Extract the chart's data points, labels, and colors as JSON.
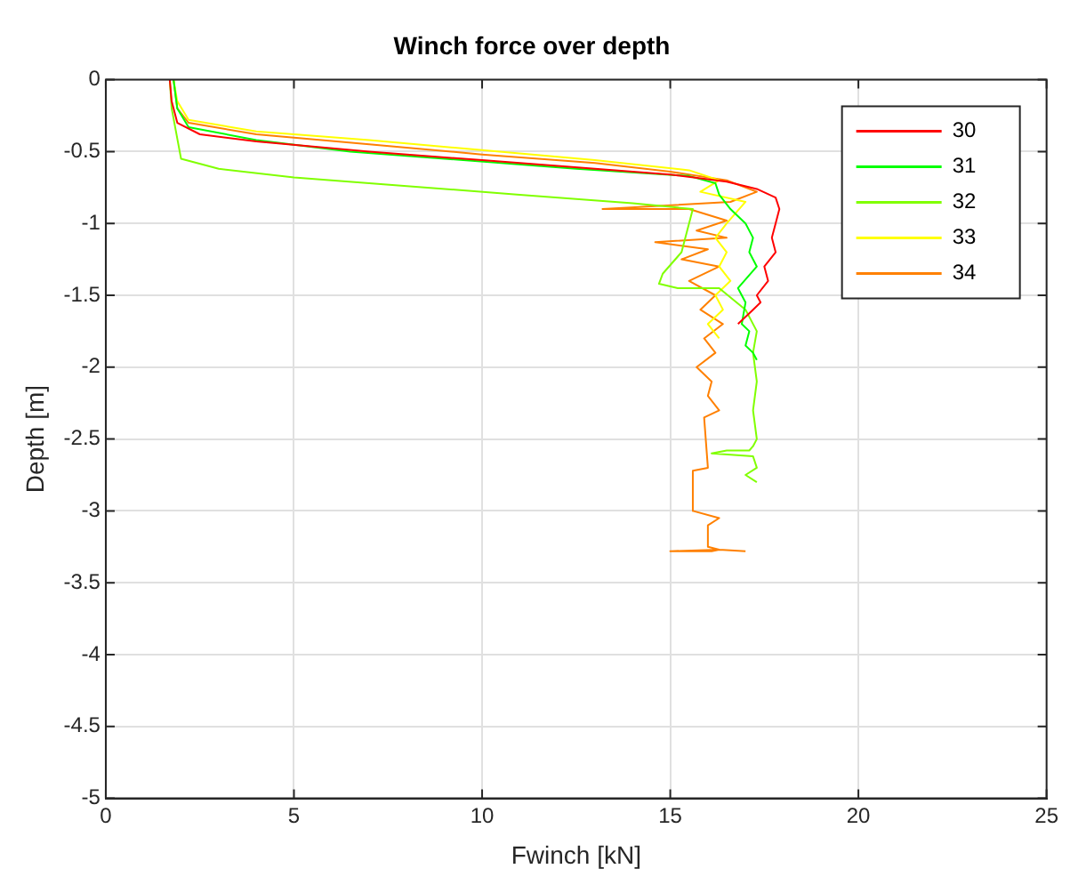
{
  "chart_data": {
    "type": "line",
    "title": "Winch force over depth",
    "xlabel": "Fwinch [kN]",
    "ylabel": "Depth [m]",
    "xlim": [
      0,
      25
    ],
    "xticks": [
      0,
      5,
      10,
      15,
      20,
      25
    ],
    "ylim": [
      -5,
      0
    ],
    "yticks": [
      -5,
      -4.5,
      -4,
      -3.5,
      -3,
      -2.5,
      -2,
      -1.5,
      -1,
      -0.5,
      0
    ],
    "grid": true,
    "legend": "top right",
    "line_style": "solid",
    "marker": "none",
    "series": [
      {
        "name": "30",
        "color": "#ff0000",
        "x": [
          1.7,
          1.75,
          1.9,
          2.5,
          4,
          7,
          10,
          13,
          15,
          16.5,
          17.3,
          17.8,
          17.9,
          17.8,
          17.7,
          17.8,
          17.5,
          17.6,
          17.3,
          17.4,
          17.2,
          17.0,
          16.8
        ],
        "values": [
          0,
          -0.15,
          -0.3,
          -0.38,
          -0.43,
          -0.5,
          -0.56,
          -0.62,
          -0.66,
          -0.71,
          -0.76,
          -0.82,
          -0.9,
          -1.0,
          -1.1,
          -1.2,
          -1.3,
          -1.4,
          -1.5,
          -1.55,
          -1.6,
          -1.65,
          -1.7
        ]
      },
      {
        "name": "31",
        "color": "#00ff00",
        "x": [
          1.8,
          1.9,
          2.2,
          4,
          6.5,
          9.5,
          12.5,
          15.5,
          16.2,
          16.3,
          16.6,
          17.0,
          17.2,
          17.1,
          17.3,
          16.8,
          17.0,
          16.9,
          17.1,
          17.0,
          17.2,
          17.3
        ],
        "values": [
          0,
          -0.2,
          -0.33,
          -0.42,
          -0.5,
          -0.56,
          -0.62,
          -0.67,
          -0.72,
          -0.8,
          -0.9,
          -1.0,
          -1.1,
          -1.2,
          -1.3,
          -1.45,
          -1.55,
          -1.7,
          -1.75,
          -1.85,
          -1.9,
          -1.95
        ]
      },
      {
        "name": "32",
        "color": "#80ff00",
        "x": [
          1.7,
          1.75,
          2,
          3,
          5,
          8,
          11,
          14,
          15.6,
          15.3,
          14.8,
          14.7,
          15.2,
          16.3,
          17.0,
          17.3,
          17.2,
          17.3,
          17.2,
          17.3,
          17.2,
          17.1,
          16.5,
          16.1,
          17.2,
          17.3,
          17.0,
          17.3
        ],
        "values": [
          0,
          -0.2,
          -0.55,
          -0.62,
          -0.68,
          -0.74,
          -0.8,
          -0.86,
          -0.9,
          -1.2,
          -1.35,
          -1.42,
          -1.45,
          -1.45,
          -1.6,
          -1.75,
          -1.9,
          -2.1,
          -2.3,
          -2.5,
          -2.55,
          -2.58,
          -2.58,
          -2.6,
          -2.62,
          -2.7,
          -2.75,
          -2.8
        ]
      },
      {
        "name": "33",
        "color": "#ffff00",
        "x": [
          1.8,
          1.9,
          2.2,
          4,
          7,
          10,
          13,
          15.5,
          16.3,
          15.8,
          17.0,
          16.5,
          16.2,
          16.5,
          16.3,
          16.6,
          16.2,
          16.4,
          16.0,
          16.3
        ],
        "values": [
          0,
          -0.15,
          -0.28,
          -0.36,
          -0.42,
          -0.49,
          -0.56,
          -0.63,
          -0.7,
          -0.78,
          -0.85,
          -1.0,
          -1.1,
          -1.2,
          -1.3,
          -1.4,
          -1.5,
          -1.6,
          -1.7,
          -1.8
        ]
      },
      {
        "name": "34",
        "color": "#ff8000",
        "x": [
          1.8,
          1.9,
          2.2,
          4,
          7,
          10,
          13,
          15,
          16.5,
          17.3,
          16.6,
          13.2,
          15.5,
          16.5,
          15.7,
          16.5,
          14.6,
          16.0,
          15.3,
          16.3,
          15.5,
          16.2,
          15.8,
          16.4,
          15.9,
          16.2,
          15.7,
          16.1,
          16.0,
          16.3,
          15.9,
          16.0,
          15.6,
          15.6,
          16.3,
          16.0,
          16.0,
          16.3,
          15.0,
          16.1,
          16.3,
          17.0
        ],
        "values": [
          0,
          -0.2,
          -0.3,
          -0.38,
          -0.45,
          -0.52,
          -0.58,
          -0.64,
          -0.7,
          -0.78,
          -0.85,
          -0.9,
          -0.9,
          -0.98,
          -1.05,
          -1.1,
          -1.13,
          -1.18,
          -1.25,
          -1.3,
          -1.4,
          -1.5,
          -1.6,
          -1.7,
          -1.8,
          -1.9,
          -2.0,
          -2.1,
          -2.2,
          -2.3,
          -2.35,
          -2.7,
          -2.72,
          -3.0,
          -3.05,
          -3.1,
          -3.25,
          -3.27,
          -3.28,
          -3.28,
          -3.27,
          -3.28
        ]
      }
    ]
  }
}
